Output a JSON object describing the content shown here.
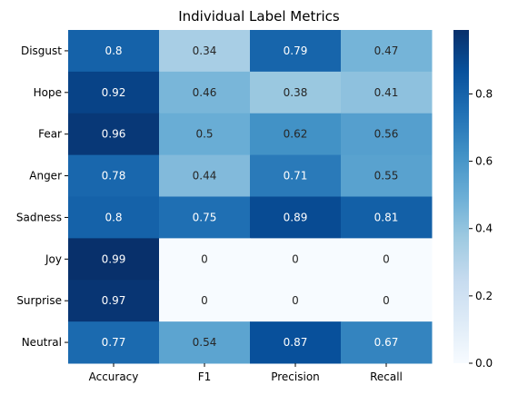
{
  "chart_data": {
    "type": "heatmap",
    "title": "Individual Label Metrics",
    "xlabel": "",
    "ylabel": "",
    "columns": [
      "Accuracy",
      "F1",
      "Precision",
      "Recall"
    ],
    "rows": [
      "Disgust",
      "Hope",
      "Fear",
      "Anger",
      "Sadness",
      "Joy",
      "Surprise",
      "Neutral"
    ],
    "values": [
      [
        0.8,
        0.34,
        0.79,
        0.47
      ],
      [
        0.92,
        0.46,
        0.38,
        0.41
      ],
      [
        0.96,
        0.5,
        0.62,
        0.56
      ],
      [
        0.78,
        0.44,
        0.71,
        0.55
      ],
      [
        0.8,
        0.75,
        0.89,
        0.81
      ],
      [
        0.99,
        0.0,
        0.0,
        0.0
      ],
      [
        0.97,
        0.0,
        0.0,
        0.0
      ],
      [
        0.77,
        0.54,
        0.87,
        0.67
      ]
    ],
    "value_labels": [
      [
        "0.8",
        "0.34",
        "0.79",
        "0.47"
      ],
      [
        "0.92",
        "0.46",
        "0.38",
        "0.41"
      ],
      [
        "0.96",
        "0.5",
        "0.62",
        "0.56"
      ],
      [
        "0.78",
        "0.44",
        "0.71",
        "0.55"
      ],
      [
        "0.8",
        "0.75",
        "0.89",
        "0.81"
      ],
      [
        "0.99",
        "0",
        "0",
        "0"
      ],
      [
        "0.97",
        "0",
        "0",
        "0"
      ],
      [
        "0.77",
        "0.54",
        "0.87",
        "0.67"
      ]
    ],
    "colormap": "Blues",
    "color_range": [
      0.0,
      0.99
    ],
    "colorbar": {
      "ticks": [
        0.0,
        0.2,
        0.4,
        0.6,
        0.8
      ],
      "tick_labels": [
        "0.0",
        "0.2",
        "0.4",
        "0.6",
        "0.8"
      ],
      "placement": "right"
    },
    "grid": false
  }
}
